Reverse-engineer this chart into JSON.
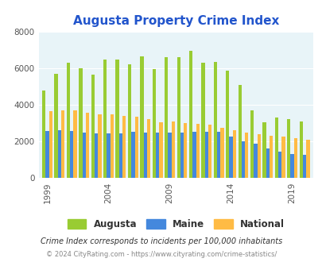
{
  "title": "Augusta Property Crime Index",
  "title_color": "#2255cc",
  "years": [
    1999,
    2000,
    2001,
    2002,
    2003,
    2004,
    2005,
    2006,
    2007,
    2008,
    2009,
    2010,
    2011,
    2012,
    2013,
    2014,
    2015,
    2016,
    2017,
    2018,
    2019,
    2020
  ],
  "augusta": [
    4800,
    5700,
    6300,
    6000,
    5650,
    6450,
    6450,
    6200,
    6650,
    5950,
    6600,
    6600,
    6950,
    6300,
    6350,
    5850,
    5100,
    3700,
    3050,
    3300,
    3200,
    3100
  ],
  "maine": [
    2550,
    2600,
    2580,
    2480,
    2420,
    2430,
    2430,
    2520,
    2490,
    2490,
    2480,
    2490,
    2520,
    2540,
    2530,
    2290,
    2010,
    1880,
    1600,
    1460,
    1310,
    1260
  ],
  "national": [
    3650,
    3700,
    3700,
    3580,
    3480,
    3470,
    3400,
    3340,
    3220,
    3060,
    3070,
    2990,
    2940,
    2920,
    2750,
    2620,
    2490,
    2390,
    2320,
    2250,
    2200,
    2100
  ],
  "augusta_color": "#99cc33",
  "maine_color": "#4488dd",
  "national_color": "#ffbb44",
  "plot_bg": "#e8f4f8",
  "ylim": [
    0,
    8000
  ],
  "yticks": [
    0,
    2000,
    4000,
    6000,
    8000
  ],
  "xtick_labels": [
    1999,
    2004,
    2009,
    2014,
    2019
  ],
  "footer1": "Crime Index corresponds to incidents per 100,000 inhabitants",
  "footer2": "© 2024 CityRating.com - https://www.cityrating.com/crime-statistics/",
  "footer1_color": "#333333",
  "footer2_color": "#888888"
}
